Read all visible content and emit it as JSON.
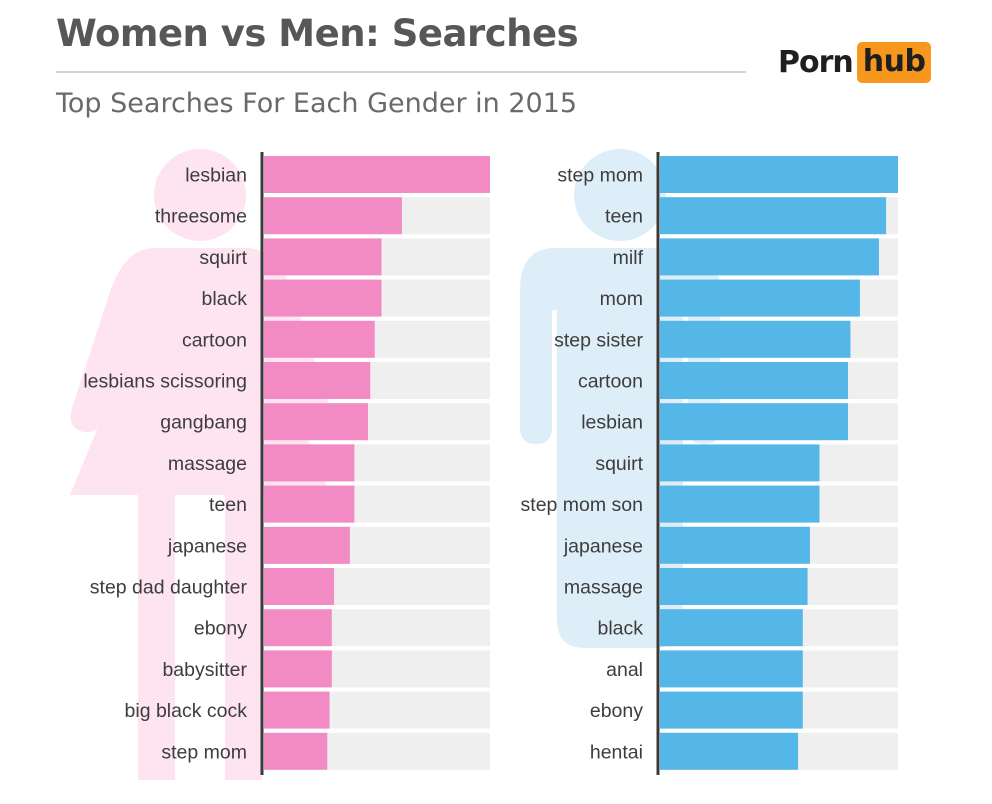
{
  "header": {
    "title": "Women vs Men: Searches",
    "subtitle": "Top Searches For Each Gender in 2015"
  },
  "logo": {
    "part1": "Porn",
    "part2": "hub"
  },
  "colors": {
    "women": "#f28ac3",
    "men": "#54b7e8",
    "track": "#efefef",
    "women_figure": "#fde4f0",
    "men_figure": "#deeef8",
    "logo_accent": "#f7971d"
  },
  "chart_data": [
    {
      "type": "bar",
      "orientation": "horizontal",
      "series": [
        {
          "values": [
            100,
            61,
            52,
            52,
            49,
            47,
            46,
            40,
            40,
            38,
            31,
            30,
            30,
            29,
            28
          ]
        }
      ],
      "categories": [
        "lesbian",
        "threesome",
        "squirt",
        "black",
        "cartoon",
        "lesbians scissoring",
        "gangbang",
        "massage",
        "teen",
        "japanese",
        "step dad daughter",
        "ebony",
        "babysitter",
        "big black cock",
        "step mom"
      ],
      "xlim": [
        0,
        100
      ],
      "grid": false,
      "icon": "female-figure-icon"
    },
    {
      "type": "bar",
      "orientation": "horizontal",
      "series": [
        {
          "values": [
            100,
            95,
            92,
            84,
            80,
            79,
            79,
            67,
            67,
            63,
            62,
            60,
            60,
            60,
            58
          ]
        }
      ],
      "categories": [
        "step mom",
        "teen",
        "milf",
        "mom",
        "step sister",
        "cartoon",
        "lesbian",
        "squirt",
        "step mom son",
        "japanese",
        "massage",
        "black",
        "anal",
        "ebony",
        "hentai"
      ],
      "xlim": [
        0,
        100
      ],
      "grid": false,
      "icon": "male-figure-icon"
    }
  ]
}
